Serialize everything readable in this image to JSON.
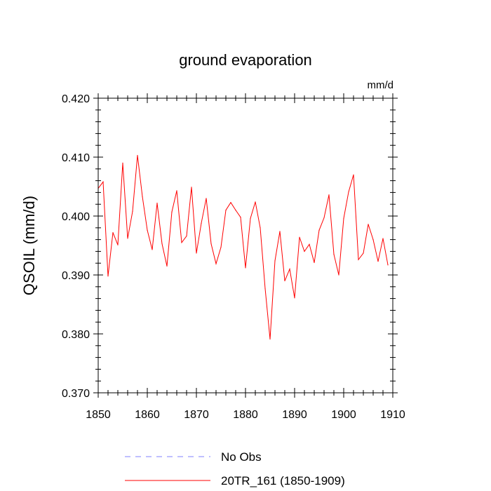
{
  "chart_data": {
    "type": "line",
    "title": "ground evaporation",
    "units_label": "mm/d",
    "xlabel": "",
    "ylabel": "QSOIL  (mm/d)",
    "xlim": [
      1850,
      1910
    ],
    "ylim": [
      0.37,
      0.42
    ],
    "x_ticks": [
      1850,
      1860,
      1870,
      1880,
      1890,
      1900,
      1910
    ],
    "x_tick_labels": [
      "1850",
      "1860",
      "1870",
      "1880",
      "1890",
      "1900",
      "1910"
    ],
    "y_ticks": [
      0.37,
      0.38,
      0.39,
      0.4,
      0.41,
      0.42
    ],
    "y_tick_labels": [
      "0.370",
      "0.380",
      "0.390",
      "0.400",
      "0.410",
      "0.420"
    ],
    "grid": false,
    "legend_position": "bottom",
    "series": [
      {
        "name": "No Obs",
        "color": "#8080ff",
        "style": "dashed",
        "x": [],
        "values": []
      },
      {
        "name": "20TR_161 (1850-1909)",
        "color": "#ff0000",
        "style": "solid",
        "x": [
          1850,
          1851,
          1852,
          1853,
          1854,
          1855,
          1856,
          1857,
          1858,
          1859,
          1860,
          1861,
          1862,
          1863,
          1864,
          1865,
          1866,
          1867,
          1868,
          1869,
          1870,
          1871,
          1872,
          1873,
          1874,
          1875,
          1876,
          1877,
          1878,
          1879,
          1880,
          1881,
          1882,
          1883,
          1884,
          1885,
          1886,
          1887,
          1888,
          1889,
          1890,
          1891,
          1892,
          1893,
          1894,
          1895,
          1896,
          1897,
          1898,
          1899,
          1900,
          1901,
          1902,
          1903,
          1904,
          1905,
          1906,
          1907,
          1908,
          1909
        ],
        "values": [
          0.4047,
          0.4058,
          0.3898,
          0.3972,
          0.3951,
          0.409,
          0.3962,
          0.4008,
          0.4103,
          0.4033,
          0.3976,
          0.3943,
          0.4022,
          0.3953,
          0.3915,
          0.4007,
          0.4043,
          0.3955,
          0.3966,
          0.4049,
          0.3937,
          0.3988,
          0.403,
          0.3953,
          0.3919,
          0.3947,
          0.401,
          0.4023,
          0.401,
          0.3998,
          0.3912,
          0.3996,
          0.4024,
          0.398,
          0.3877,
          0.3791,
          0.3924,
          0.3974,
          0.389,
          0.391,
          0.3861,
          0.3964,
          0.394,
          0.3952,
          0.3921,
          0.3976,
          0.3997,
          0.4036,
          0.3935,
          0.39,
          0.3996,
          0.4041,
          0.407,
          0.3926,
          0.3937,
          0.3986,
          0.396,
          0.3923,
          0.3962,
          0.3917
        ]
      }
    ]
  }
}
